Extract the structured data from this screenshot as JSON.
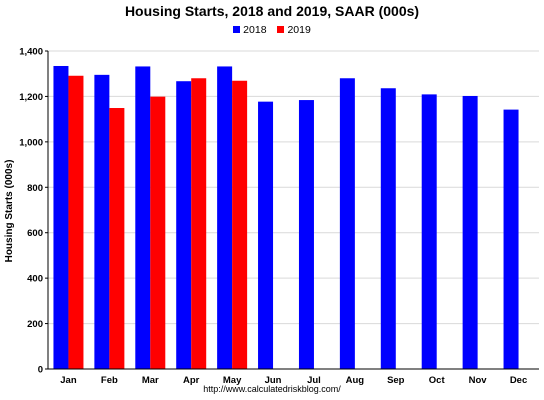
{
  "chart_data": {
    "type": "bar",
    "title": "Housing Starts,  2018 and 2019, SAAR (000s)",
    "xlabel": "",
    "ylabel": "Housing Starts (000s)",
    "ylim": [
      0,
      1400
    ],
    "yticks": [
      0,
      200,
      400,
      600,
      800,
      1000,
      1200,
      1400
    ],
    "ytick_labels": [
      "0",
      "200",
      "400",
      "600",
      "800",
      "1,000",
      "1,200",
      "1,400"
    ],
    "categories": [
      "Jan",
      "Feb",
      "Mar",
      "Apr",
      "May",
      "Jun",
      "Jul",
      "Aug",
      "Sep",
      "Oct",
      "Nov",
      "Dec"
    ],
    "series": [
      {
        "name": "2018",
        "color": "#0000ff",
        "values": [
          1334,
          1295,
          1332,
          1267,
          1332,
          1177,
          1184,
          1280,
          1236,
          1209,
          1202,
          1142
        ]
      },
      {
        "name": "2019",
        "color": "#ff0000",
        "values": [
          1291,
          1149,
          1199,
          1280,
          1269,
          null,
          null,
          null,
          null,
          null,
          null,
          null
        ]
      }
    ],
    "grid": true,
    "legend": "top",
    "source": "http://www.calculatedriskblog.com/"
  }
}
